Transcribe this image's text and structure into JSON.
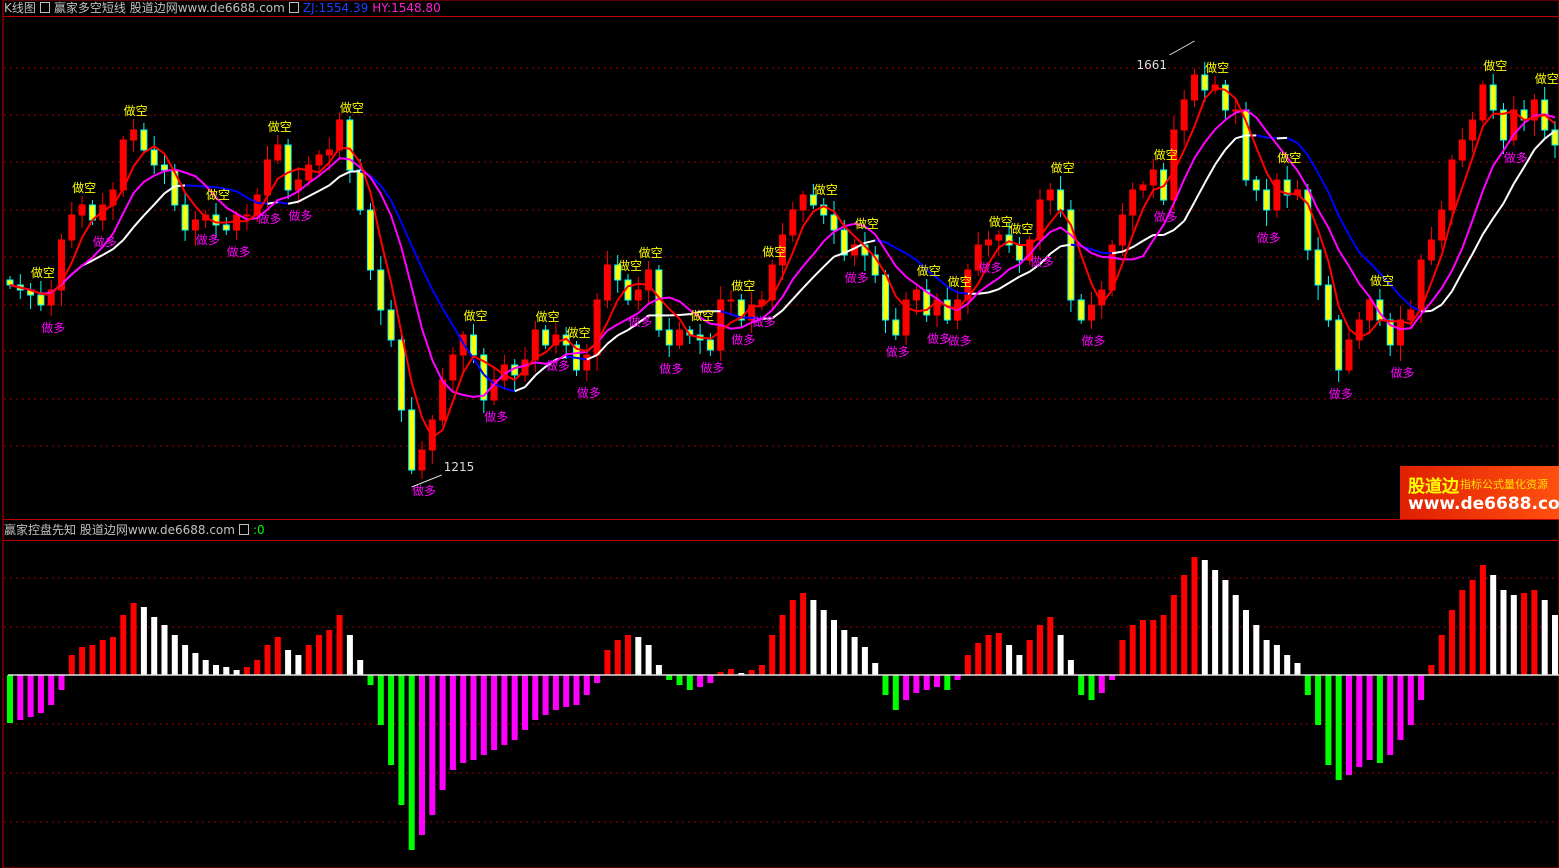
{
  "top_header": {
    "chart_label": "K线图",
    "indicator_name": "赢家多空短线 股道边网www.de6688.com",
    "zj": "ZJ:1554.39",
    "hy": "HY:1548.80"
  },
  "bottom_header": {
    "indicator_name": "赢家控盘先知 股道边网www.de6688.com",
    "value_prefix": "",
    "value": ":0"
  },
  "watermark": {
    "brand": "股道边",
    "slogan": "指标公式量化资源",
    "url": "www.de6688.com"
  },
  "colors": {
    "up": "#ff0000",
    "down_body": "#ffff00",
    "down_edge": "#00ffff",
    "ma_fast": "#ff0000",
    "ma_mid": "#ff00ff",
    "ma_slow": "#ffffff",
    "ma_slow_falling": "#0000ff",
    "hist_pos_rising": "#ff0000",
    "hist_pos_falling": "#ffffff",
    "hist_neg_falling": "#00ff00",
    "hist_neg_rising": "#ff00ff",
    "grid": "#a00000"
  },
  "chart_data": [
    {
      "type": "candlestick",
      "title": "K线图",
      "closes": [
        1417,
        1412,
        1407,
        1397,
        1412,
        1462,
        1487,
        1497,
        1482,
        1497,
        1512,
        1562,
        1572,
        1552,
        1537,
        1532,
        1497,
        1472,
        1482,
        1487,
        1477,
        1472,
        1487,
        1487,
        1507,
        1542,
        1557,
        1512,
        1522,
        1537,
        1547,
        1552,
        1582,
        1532,
        1492,
        1432,
        1392,
        1362,
        1292,
        1232,
        1252,
        1282,
        1322,
        1347,
        1367,
        1347,
        1302,
        1322,
        1337,
        1327,
        1342,
        1372,
        1357,
        1367,
        1357,
        1332,
        1347,
        1402,
        1437,
        1422,
        1402,
        1412,
        1432,
        1372,
        1357,
        1372,
        1367,
        1362,
        1352,
        1402,
        1402,
        1382,
        1397,
        1402,
        1437,
        1467,
        1492,
        1507,
        1497,
        1487,
        1472,
        1447,
        1457,
        1447,
        1427,
        1382,
        1367,
        1402,
        1412,
        1387,
        1402,
        1382,
        1402,
        1432,
        1457,
        1462,
        1467,
        1457,
        1442,
        1462,
        1502,
        1512,
        1492,
        1402,
        1382,
        1397,
        1412,
        1457,
        1487,
        1512,
        1517,
        1532,
        1502,
        1572,
        1602,
        1627,
        1612,
        1617,
        1592,
        1592,
        1522,
        1512,
        1492,
        1522,
        1507,
        1512,
        1452,
        1417,
        1382,
        1332,
        1362,
        1382,
        1402,
        1382,
        1357,
        1382,
        1392,
        1442,
        1462,
        1492,
        1542,
        1562,
        1582,
        1617,
        1592,
        1562,
        1592,
        1582,
        1602,
        1572,
        1557
      ],
      "annotations": [
        {
          "index": 115,
          "text": "1661",
          "price": 1661
        },
        {
          "index": 39,
          "text": "1215",
          "price": 1215
        }
      ],
      "sell_signal_label": "做空",
      "buy_signal_label": "做多",
      "sell_signals": [
        3,
        7,
        12,
        20,
        26,
        33,
        45,
        52,
        55,
        60,
        62,
        67,
        71,
        74,
        79,
        83,
        89,
        92,
        96,
        98,
        102,
        112,
        117,
        124,
        133,
        144,
        149
      ],
      "buy_signals": [
        4,
        9,
        19,
        22,
        25,
        28,
        40,
        47,
        53,
        56,
        61,
        64,
        68,
        71,
        73,
        82,
        86,
        90,
        92,
        95,
        100,
        105,
        112,
        122,
        129,
        135,
        146
      ],
      "grid": true
    },
    {
      "type": "bar",
      "title": "赢家控盘先知",
      "values": [
        -48,
        -45,
        -42,
        -38,
        -30,
        -15,
        20,
        28,
        30,
        35,
        38,
        60,
        72,
        68,
        58,
        50,
        40,
        30,
        22,
        15,
        10,
        8,
        5,
        8,
        15,
        30,
        38,
        25,
        20,
        30,
        40,
        45,
        60,
        40,
        15,
        -10,
        -50,
        -90,
        -130,
        -175,
        -160,
        -140,
        -115,
        -95,
        -88,
        -85,
        -80,
        -75,
        -70,
        -65,
        -55,
        -45,
        -40,
        -35,
        -32,
        -30,
        -20,
        -8,
        25,
        35,
        40,
        38,
        30,
        10,
        -5,
        -10,
        -15,
        -12,
        -8,
        3,
        6,
        2,
        5,
        10,
        40,
        60,
        75,
        82,
        75,
        65,
        55,
        45,
        38,
        28,
        12,
        -20,
        -35,
        -25,
        -18,
        -15,
        -12,
        -15,
        -5,
        20,
        32,
        40,
        42,
        30,
        20,
        35,
        50,
        58,
        40,
        15,
        -20,
        -25,
        -18,
        -5,
        35,
        50,
        55,
        55,
        60,
        80,
        100,
        118,
        115,
        105,
        95,
        80,
        65,
        50,
        35,
        30,
        20,
        12,
        -20,
        -50,
        -90,
        -105,
        -100,
        -92,
        -85,
        -88,
        -80,
        -65,
        -50,
        -25,
        10,
        40,
        65,
        85,
        95,
        110,
        100,
        85,
        80,
        82,
        85,
        75,
        60
      ],
      "grid": true
    }
  ]
}
